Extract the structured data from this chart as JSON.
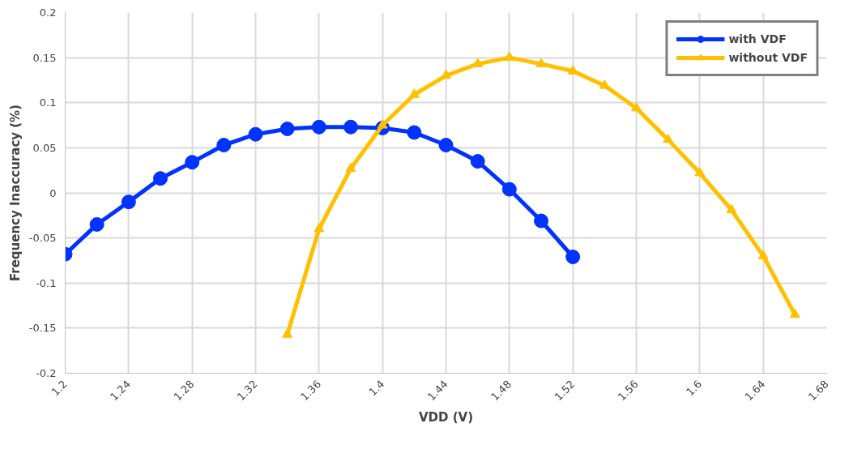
{
  "chart_data": {
    "type": "line",
    "xlabel": "VDD (V)",
    "ylabel": "Frequency Inaccuracy (%)",
    "xlim": [
      1.2,
      1.68
    ],
    "xticks": [
      1.2,
      1.24,
      1.28,
      1.32,
      1.36,
      1.4,
      1.44,
      1.48,
      1.52,
      1.56,
      1.6,
      1.64,
      1.68
    ],
    "ylim": [
      -0.2,
      0.2
    ],
    "yticks": [
      -0.2,
      -0.15,
      -0.1,
      -0.05,
      0,
      0.05,
      0.1,
      0.15,
      0.2
    ],
    "grid": true,
    "legend": "top right",
    "series": [
      {
        "name": "with VDF",
        "color": "#0033ff",
        "marker": "circle",
        "x": [
          1.2,
          1.22,
          1.24,
          1.26,
          1.28,
          1.3,
          1.32,
          1.34,
          1.36,
          1.38,
          1.4,
          1.42,
          1.44,
          1.46,
          1.48,
          1.5,
          1.52
        ],
        "values": [
          -0.068,
          -0.035,
          -0.01,
          0.016,
          0.034,
          0.053,
          0.065,
          0.071,
          0.073,
          0.073,
          0.072,
          0.067,
          0.053,
          0.035,
          0.004,
          -0.031,
          -0.071
        ]
      },
      {
        "name": "without VDF",
        "color": "#ffc000",
        "marker": "triangle",
        "x": [
          1.34,
          1.36,
          1.38,
          1.4,
          1.42,
          1.44,
          1.46,
          1.48,
          1.5,
          1.52,
          1.54,
          1.56,
          1.58,
          1.6,
          1.62,
          1.64,
          1.66
        ],
        "values": [
          -0.157,
          -0.04,
          0.027,
          0.075,
          0.109,
          0.13,
          0.143,
          0.15,
          0.143,
          0.135,
          0.119,
          0.094,
          0.059,
          0.022,
          -0.019,
          -0.07,
          -0.135
        ]
      }
    ]
  }
}
